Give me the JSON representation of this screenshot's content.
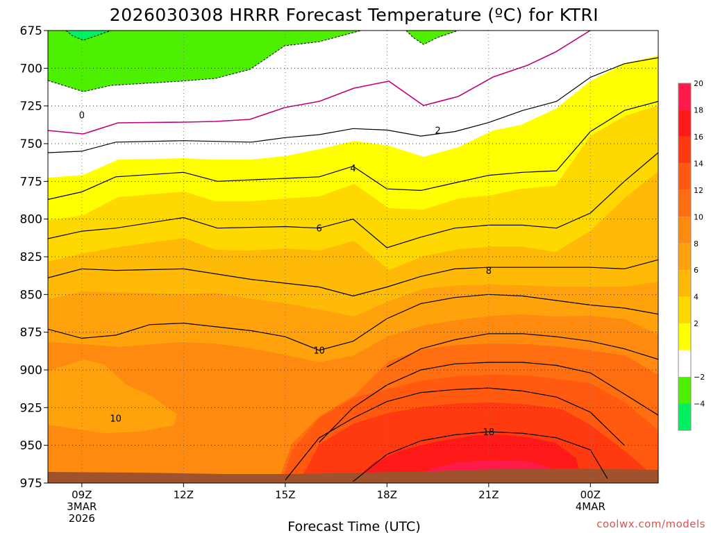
{
  "title": "2026030308 HRRR Forecast Temperature (ºC) for KTRI",
  "credit": "coolwx.com/models",
  "chart_data": {
    "type": "heatmap",
    "title": "2026030308 HRRR Forecast Temperature (ºC) for KTRI",
    "xlabel": "Forecast Time (UTC)",
    "ylabel": "",
    "x_range_hours": [
      8,
      26
    ],
    "y_range_hpa": [
      675,
      975
    ],
    "y_axis": "pressure (inverted)",
    "y_ticks": [
      675,
      700,
      725,
      750,
      775,
      800,
      825,
      850,
      875,
      900,
      925,
      950,
      975
    ],
    "x_ticks": [
      {
        "hour": 9,
        "label": "09Z",
        "sub1": "3MAR",
        "sub2": "2026"
      },
      {
        "hour": 12,
        "label": "12Z",
        "sub1": "",
        "sub2": ""
      },
      {
        "hour": 15,
        "label": "15Z",
        "sub1": "",
        "sub2": ""
      },
      {
        "hour": 18,
        "label": "18Z",
        "sub1": "",
        "sub2": ""
      },
      {
        "hour": 21,
        "label": "21Z",
        "sub1": "",
        "sub2": ""
      },
      {
        "hour": 24,
        "label": "00Z",
        "sub1": "4MAR",
        "sub2": ""
      }
    ],
    "grid": true,
    "colorbar": {
      "labels": [
        20,
        18,
        16,
        14,
        12,
        10,
        8,
        6,
        4,
        2,
        -2,
        -4
      ],
      "bands": [
        {
          "from": 20,
          "to": 22,
          "color": "#ff1a4a"
        },
        {
          "from": 18,
          "to": 20,
          "color": "#ff1a1a"
        },
        {
          "from": 16,
          "to": 18,
          "color": "#ff3a10"
        },
        {
          "from": 14,
          "to": 16,
          "color": "#ff5a10"
        },
        {
          "from": 12,
          "to": 14,
          "color": "#ff6e10"
        },
        {
          "from": 10,
          "to": 12,
          "color": "#ff8a10"
        },
        {
          "from": 8,
          "to": 10,
          "color": "#ffa20c"
        },
        {
          "from": 6,
          "to": 8,
          "color": "#ffba08"
        },
        {
          "from": 4,
          "to": 6,
          "color": "#ffd800"
        },
        {
          "from": 2,
          "to": 4,
          "color": "#ffff00"
        },
        {
          "from": -2,
          "to": 2,
          "color": "#ffffff"
        },
        {
          "from": -4,
          "to": -2,
          "color": "#4cf000"
        },
        {
          "from": -6,
          "to": -4,
          "color": "#00f060"
        }
      ]
    },
    "contour_labels": [
      {
        "text": "0",
        "hour": 9.0,
        "hpa": 731
      },
      {
        "text": "2",
        "hour": 19.5,
        "hpa": 741
      },
      {
        "text": "4",
        "hour": 17.0,
        "hpa": 766
      },
      {
        "text": "6",
        "hour": 16.0,
        "hpa": 806
      },
      {
        "text": "8",
        "hour": 21.0,
        "hpa": 834
      },
      {
        "text": "10",
        "hour": 16.0,
        "hpa": 887
      },
      {
        "text": "10",
        "hour": 10.0,
        "hpa": 932
      },
      {
        "text": "18",
        "hour": 21.0,
        "hpa": 941
      }
    ],
    "isotherms": [
      {
        "level": 2,
        "points": [
          [
            8,
            756
          ],
          [
            9,
            755
          ],
          [
            10,
            749
          ],
          [
            12,
            748
          ],
          [
            14,
            749
          ],
          [
            15,
            746
          ],
          [
            16,
            744
          ],
          [
            17,
            740
          ],
          [
            18,
            741
          ],
          [
            19,
            745
          ],
          [
            20,
            742
          ],
          [
            21,
            736
          ],
          [
            22,
            728
          ],
          [
            23,
            722
          ],
          [
            24,
            706
          ],
          [
            25,
            697
          ],
          [
            26,
            693
          ]
        ]
      },
      {
        "level": 4,
        "points": [
          [
            8,
            787
          ],
          [
            9,
            782
          ],
          [
            10,
            772
          ],
          [
            12,
            769
          ],
          [
            13,
            775
          ],
          [
            15,
            773
          ],
          [
            16,
            772
          ],
          [
            17,
            765
          ],
          [
            18,
            780
          ],
          [
            19,
            781
          ],
          [
            20,
            776
          ],
          [
            21,
            771
          ],
          [
            22,
            769
          ],
          [
            23,
            768
          ],
          [
            24,
            742
          ],
          [
            25,
            728
          ],
          [
            26,
            722
          ]
        ]
      },
      {
        "level": 6,
        "points": [
          [
            8,
            813
          ],
          [
            9,
            808
          ],
          [
            10,
            806
          ],
          [
            12,
            799
          ],
          [
            13,
            806
          ],
          [
            15,
            805
          ],
          [
            16,
            806
          ],
          [
            17,
            800
          ],
          [
            18,
            819
          ],
          [
            19,
            812
          ],
          [
            20,
            806
          ],
          [
            21,
            804
          ],
          [
            22,
            804
          ],
          [
            23,
            806
          ],
          [
            24,
            796
          ],
          [
            25,
            775
          ],
          [
            26,
            756
          ]
        ]
      },
      {
        "level": 8,
        "points": [
          [
            8,
            839
          ],
          [
            9,
            833
          ],
          [
            10,
            834
          ],
          [
            12,
            833
          ],
          [
            14,
            840
          ],
          [
            16,
            845
          ],
          [
            17,
            851
          ],
          [
            18,
            845
          ],
          [
            19,
            838
          ],
          [
            20,
            833
          ],
          [
            21,
            832
          ],
          [
            22,
            832
          ],
          [
            23,
            832
          ],
          [
            24,
            832
          ],
          [
            25,
            833
          ],
          [
            26,
            827
          ]
        ]
      },
      {
        "level": 10,
        "points": [
          [
            8,
            873
          ],
          [
            9,
            879
          ],
          [
            10,
            877
          ],
          [
            11,
            870
          ],
          [
            12,
            869
          ],
          [
            14,
            874
          ],
          [
            15,
            878
          ],
          [
            16,
            887
          ],
          [
            17,
            881
          ],
          [
            18,
            866
          ],
          [
            19,
            856
          ],
          [
            20,
            852
          ],
          [
            21,
            850
          ],
          [
            22,
            851
          ],
          [
            23,
            854
          ],
          [
            24,
            857
          ],
          [
            25,
            859
          ],
          [
            26,
            863
          ]
        ]
      },
      {
        "level": 12,
        "points": [
          [
            18,
            898
          ],
          [
            19,
            886
          ],
          [
            20,
            880
          ],
          [
            21,
            876
          ],
          [
            22,
            876
          ],
          [
            23,
            878
          ],
          [
            24,
            881
          ],
          [
            25,
            886
          ],
          [
            26,
            893
          ]
        ]
      },
      {
        "level": 14,
        "points": [
          [
            16,
            948
          ],
          [
            17,
            925
          ],
          [
            18,
            910
          ],
          [
            19,
            900
          ],
          [
            20,
            896
          ],
          [
            21,
            895
          ],
          [
            22,
            895
          ],
          [
            23,
            897
          ],
          [
            24,
            902
          ],
          [
            25,
            916
          ],
          [
            26,
            930
          ]
        ]
      },
      {
        "level": 16,
        "points": [
          [
            15,
            973
          ],
          [
            16,
            945
          ],
          [
            17,
            932
          ],
          [
            18,
            921
          ],
          [
            19,
            915
          ],
          [
            20,
            913
          ],
          [
            21,
            912
          ],
          [
            22,
            914
          ],
          [
            23,
            918
          ],
          [
            24,
            928
          ],
          [
            25,
            950
          ]
        ]
      },
      {
        "level": 18,
        "points": [
          [
            17,
            974
          ],
          [
            18,
            956
          ],
          [
            19,
            947
          ],
          [
            20,
            943
          ],
          [
            21,
            941
          ],
          [
            22,
            942
          ],
          [
            23,
            945
          ],
          [
            24,
            953
          ],
          [
            24.5,
            972
          ]
        ]
      }
    ]
  }
}
